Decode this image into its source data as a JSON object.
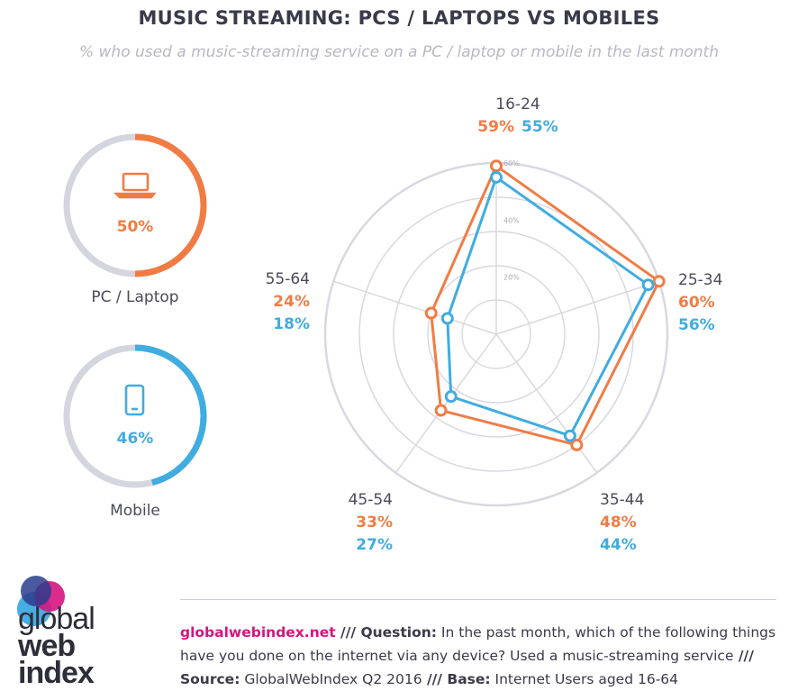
{
  "header": {
    "title": "MUSIC STREAMING: PCS / LAPTOPS VS MOBILES",
    "subtitle": "% who used a music-streaming service on a PC / laptop or mobile in the last month"
  },
  "colors": {
    "pc": "#f07c44",
    "mobile": "#40ace0",
    "ring_track": "#d4d5de",
    "grid": "#d8d9e0",
    "label": "#4a4a5a",
    "brand": "#d6157f"
  },
  "summary": {
    "pc": {
      "label": "PC / Laptop",
      "value_text": "50%",
      "value": 50,
      "icon": "laptop-icon"
    },
    "mobile": {
      "label": "Mobile",
      "value_text": "46%",
      "value": 46,
      "icon": "smartphone-icon"
    }
  },
  "chart_data": {
    "type": "radar",
    "categories": [
      "16-24",
      "25-34",
      "35-44",
      "45-54",
      "55-64"
    ],
    "rmax": 60,
    "ticks": [
      "20%",
      "40%",
      "60%"
    ],
    "tick_values": [
      20,
      40,
      60
    ],
    "series": [
      {
        "key": "pc",
        "values": [
          59,
          60,
          48,
          33,
          24
        ],
        "labels": [
          "59%",
          "60%",
          "48%",
          "33%",
          "24%"
        ]
      },
      {
        "key": "mobile",
        "values": [
          55,
          56,
          44,
          27,
          18
        ],
        "labels": [
          "55%",
          "56%",
          "44%",
          "27%",
          "18%"
        ]
      }
    ]
  },
  "footer": {
    "site": "globalwebindex.net",
    "sep1": " /// ",
    "question_label": "Question:",
    "question": " In the past month, which of the following things have you done on the internet via any device? Used a music-streaming service",
    "sep2": " /// ",
    "source_label": "Source:",
    "source": " GlobalWebIndex Q2 2016",
    "sep3": " /// ",
    "base_label": "Base:",
    "base": " Internet Users aged 16-64"
  },
  "logo": {
    "line1": "global",
    "line2": "web",
    "line3": "index"
  }
}
